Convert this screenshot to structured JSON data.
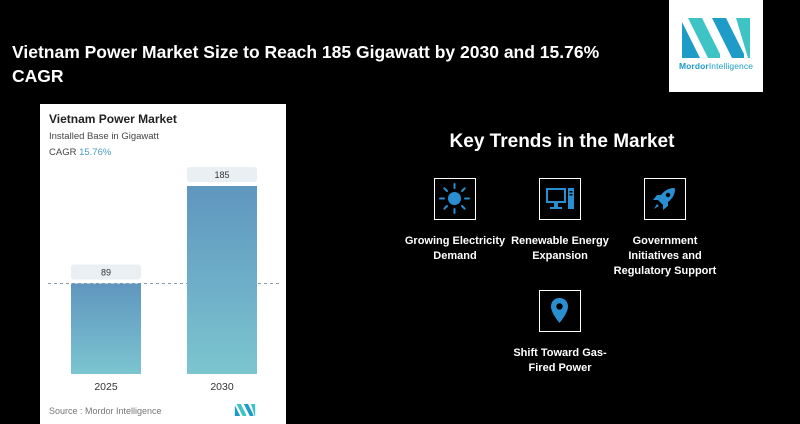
{
  "headline": "Vietnam Power Market Size to Reach 185 Gigawatt by 2030 and 15.76% CAGR",
  "logo": {
    "name": "Mordor",
    "suffix": "Intelligence",
    "colors": [
      "#1f9bc7",
      "#3ec4c4"
    ]
  },
  "chart_card": {
    "title": "Vietnam Power Market",
    "subtitle": "Installed Base in Gigawatt",
    "cagr_label": "CAGR",
    "cagr_value": "15.76%",
    "source": "Source :  Mordor Intelligence"
  },
  "chart_data": {
    "type": "bar",
    "categories": [
      "2025",
      "2030"
    ],
    "values": [
      89,
      185
    ],
    "data_labels": [
      "89",
      "185"
    ],
    "ylim": [
      0,
      185
    ],
    "reference_line_value": 89,
    "grid": false,
    "legend": "none",
    "bar_gradient": [
      "#5f96bf",
      "#7cc5d0"
    ]
  },
  "trends": {
    "title": "Key Trends in the Market",
    "items": [
      {
        "label": "Growing Electricity Demand",
        "icon": "sun-icon"
      },
      {
        "label": "Renewable Energy Expansion",
        "icon": "computer-icon"
      },
      {
        "label": "Government Initiatives and Regulatory Support",
        "icon": "rocket-icon"
      },
      {
        "label": "Shift Toward Gas-Fired Power",
        "icon": "location-pin-icon"
      }
    ]
  }
}
